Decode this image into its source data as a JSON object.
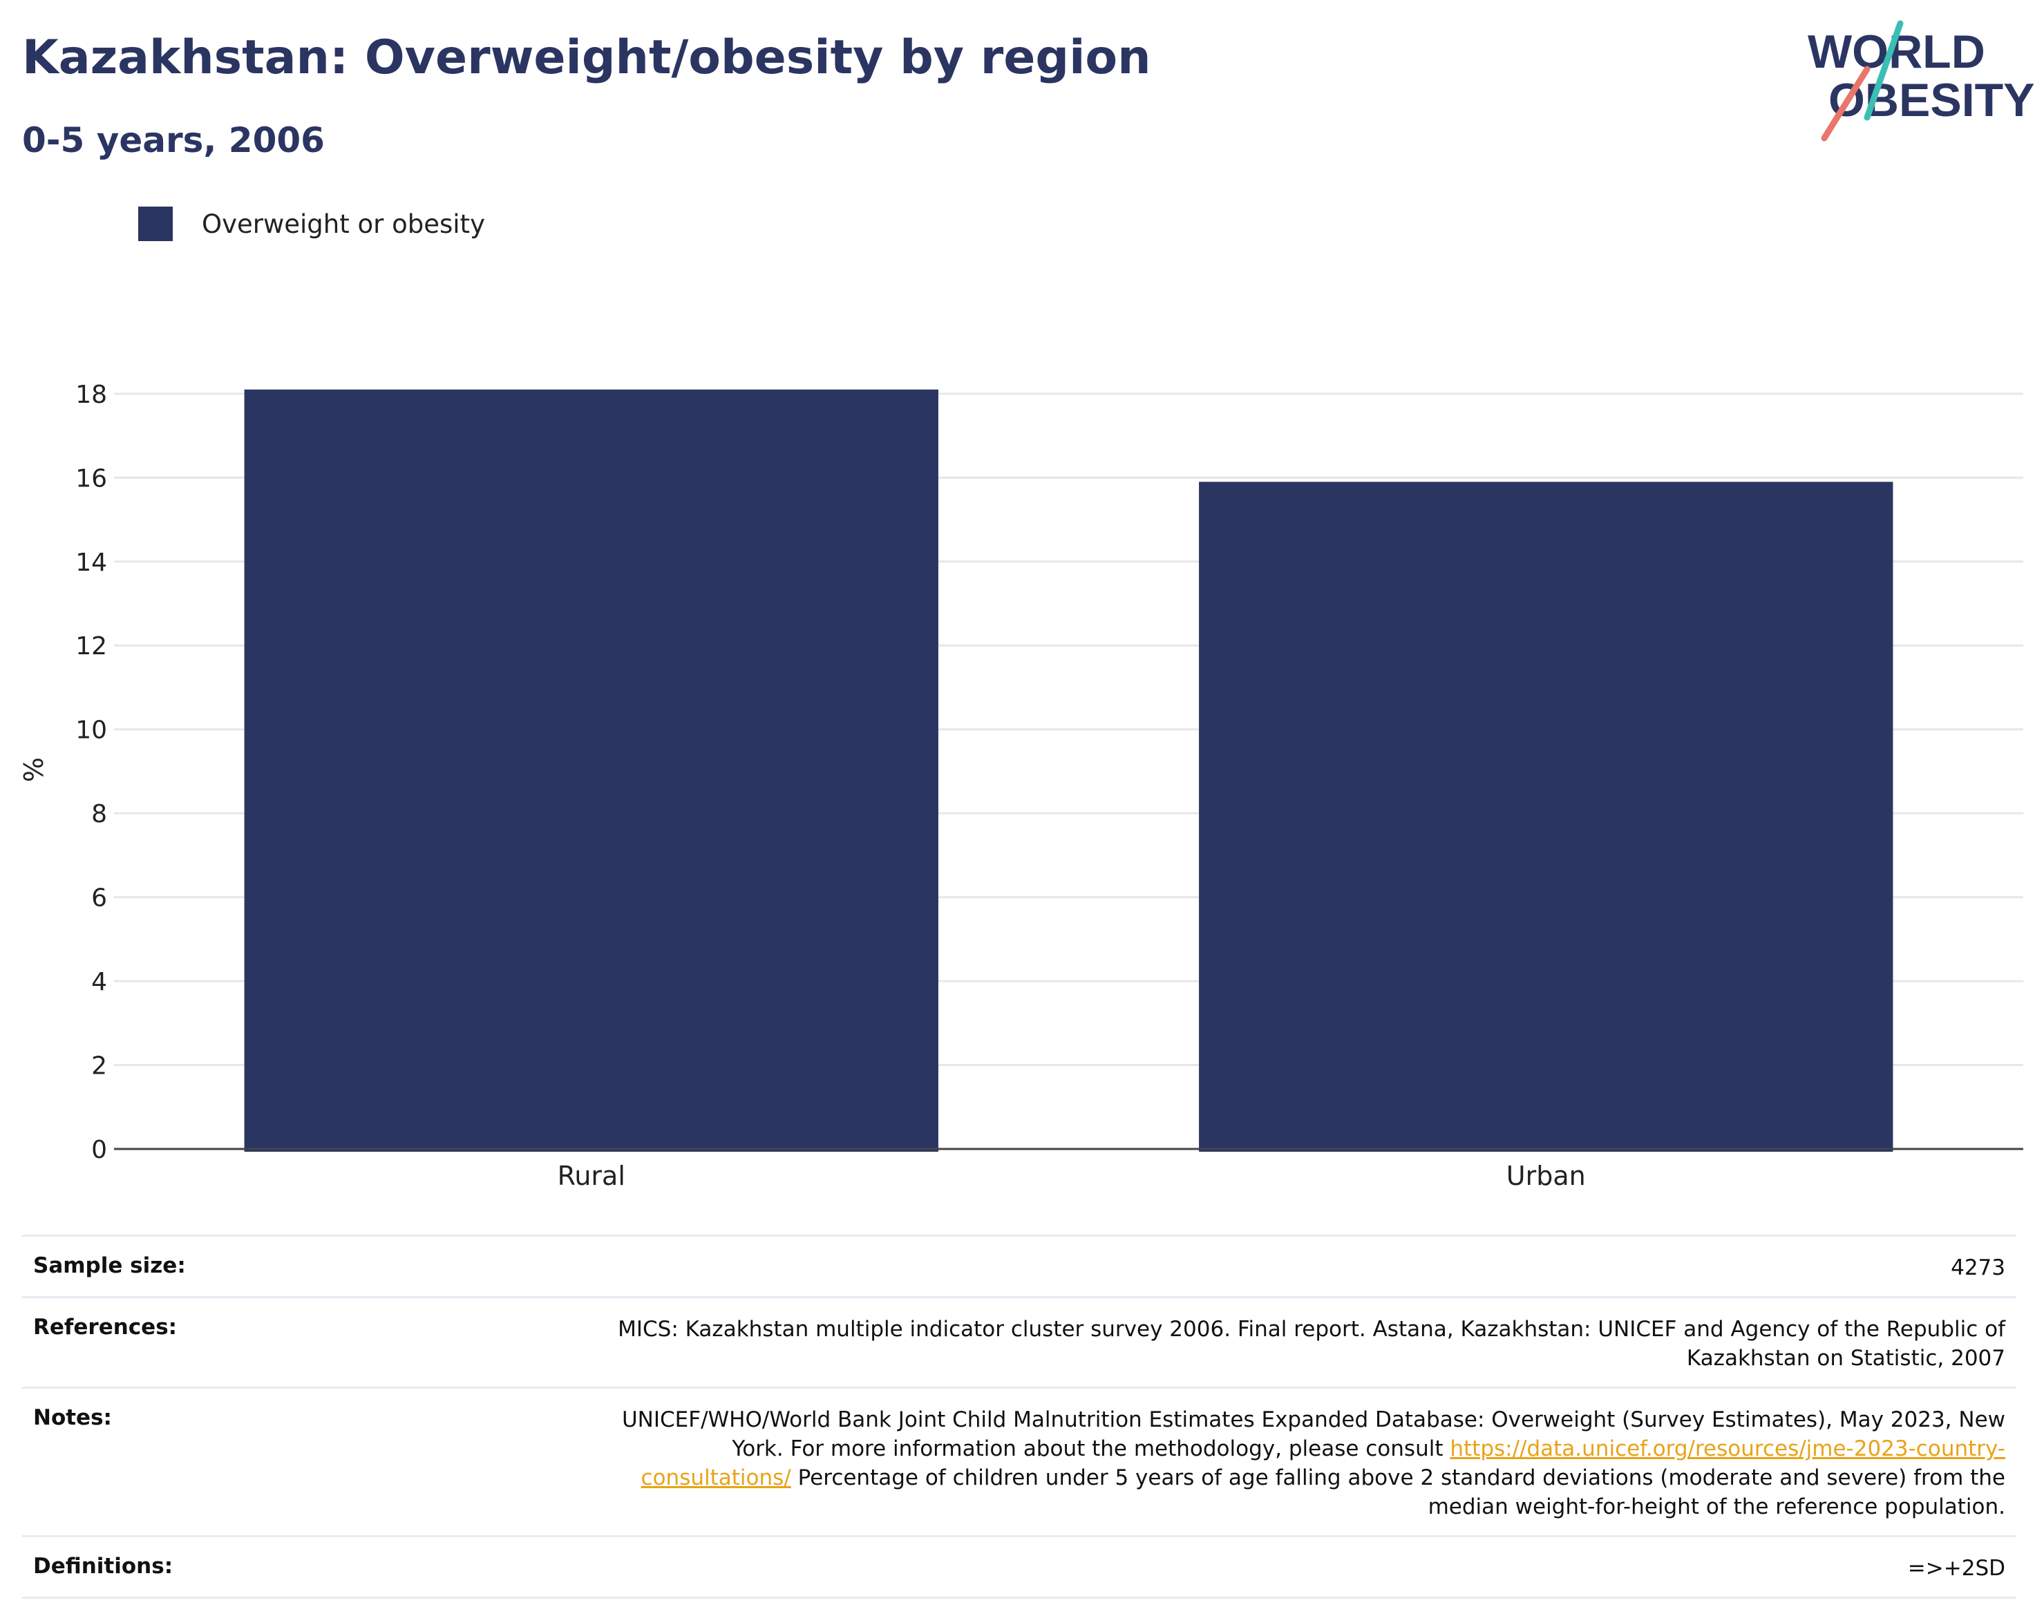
{
  "title": "Kazakhstan: Overweight/obesity by region",
  "subtitle": "0-5 years, 2006",
  "logo": {
    "line1": "WORLD",
    "line2": "OBESITY"
  },
  "legend": [
    {
      "label": "Overweight or obesity",
      "color": "#2b3562"
    }
  ],
  "chart_data": {
    "type": "bar",
    "categories": [
      "Rural",
      "Urban"
    ],
    "series": [
      {
        "name": "Overweight or obesity",
        "values": [
          18.1,
          15.9
        ]
      }
    ],
    "ylabel": "%",
    "xlabel": "",
    "ylim": [
      0,
      18
    ],
    "yticks": [
      0,
      2,
      4,
      6,
      8,
      10,
      12,
      14,
      16,
      18
    ],
    "grid": true,
    "legend_position": "top-left",
    "bar_color": "#2b3562"
  },
  "meta": {
    "sample_size": {
      "label": "Sample size:",
      "value": "4273"
    },
    "references": {
      "label": "References:",
      "value": "MICS: Kazakhstan multiple indicator cluster survey 2006. Final report. Astana, Kazakhstan: UNICEF and Agency of the Republic of Kazakhstan on Statistic, 2007"
    },
    "notes": {
      "label": "Notes:",
      "text_before": "UNICEF/WHO/World Bank Joint Child Malnutrition Estimates Expanded Database: Overweight (Survey Estimates), May 2023, New York. For more information about the methodology, please consult",
      "link": "https://data.unicef.org/resources/jme-2023-country-consultations/",
      "text_after": "Percentage of children under 5 years of age falling above 2 standard deviations (moderate and severe) from the median weight-for-height of the reference population."
    },
    "definitions": {
      "label": "Definitions:",
      "value": "=>+2SD"
    }
  }
}
